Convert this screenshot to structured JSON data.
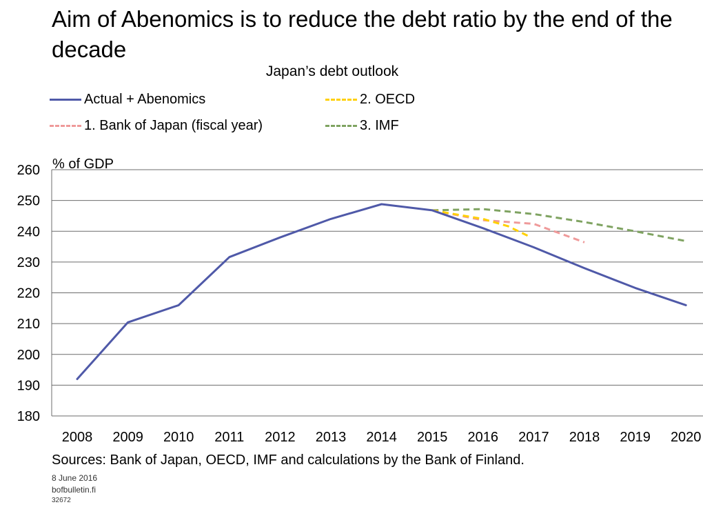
{
  "title": "Aim of Abenomics is to reduce the debt ratio by the end of the decade",
  "chart_data": {
    "type": "line",
    "title": "Japan’s debt outlook",
    "ylabel": "% of GDP",
    "xlabel": "",
    "ylim": [
      180,
      260
    ],
    "yticks": [
      "180",
      "190",
      "200",
      "210",
      "220",
      "230",
      "240",
      "250",
      "260"
    ],
    "categories": [
      "2008",
      "2009",
      "2010",
      "2011",
      "2012",
      "2013",
      "2014",
      "2015",
      "2016",
      "2017",
      "2018",
      "2019",
      "2020"
    ],
    "grid": true,
    "legend_position": "top",
    "series": [
      {
        "name": "Actual + Abenomics",
        "color": "#4f59a8",
        "dash": false,
        "x": [
          2008,
          2009,
          2010,
          2011,
          2012,
          2013,
          2014,
          2015,
          2016,
          2017,
          2018,
          2019,
          2020
        ],
        "values": [
          192,
          210.4,
          216,
          231.6,
          238,
          244,
          248.8,
          246.8,
          241,
          234.8,
          228,
          221.6,
          216
        ]
      },
      {
        "name": "1. Bank of Japan (fiscal year)",
        "color": "#ef9a9a",
        "dash": true,
        "x": [
          2015,
          2016,
          2017,
          2018
        ],
        "values": [
          246.8,
          243.6,
          242.4,
          236.4
        ]
      },
      {
        "name": "2. OECD",
        "color": "#ffd000",
        "dash": true,
        "x": [
          2015,
          2016,
          2016.5,
          2016.9
        ],
        "values": [
          246.8,
          244,
          241.6,
          238.4
        ]
      },
      {
        "name": "3. IMF",
        "color": "#7fa361",
        "dash": true,
        "x": [
          2015,
          2016,
          2017,
          2018,
          2019,
          2020
        ],
        "values": [
          246.8,
          247.2,
          245.6,
          243,
          240,
          236.8
        ]
      }
    ]
  },
  "legend": [
    {
      "label": "Actual + Abenomics"
    },
    {
      "label": "1. Bank of Japan (fiscal year)"
    },
    {
      "label": "2. OECD"
    },
    {
      "label": "3. IMF"
    }
  ],
  "sources": "Sources: Bank of Japan, OECD, IMF and calculations by the Bank of Finland.",
  "date": "8 June 2016",
  "site": "bofbulletin.fi",
  "code": "32672"
}
